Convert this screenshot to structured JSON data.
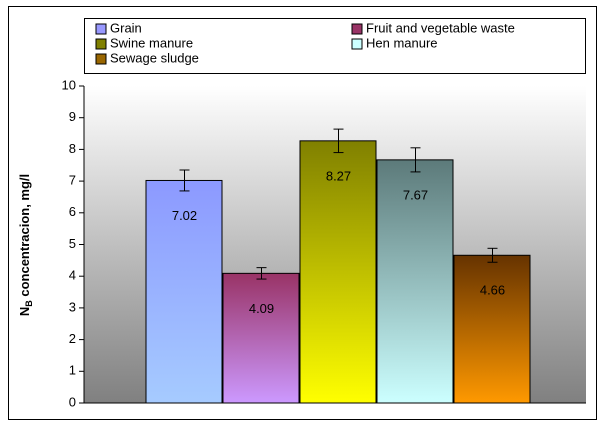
{
  "chart_data": {
    "type": "bar",
    "ylabel": {
      "main": "N",
      "sub": "B",
      "rest": " concentracion, mg/l"
    },
    "ylim": [
      0,
      10
    ],
    "yticks": [
      0,
      1,
      2,
      3,
      4,
      5,
      6,
      7,
      8,
      9,
      10
    ],
    "series": [
      {
        "name": "Grain",
        "color": "#9999ff",
        "gradient": [
          "#8c99ff",
          "#a6cbff"
        ],
        "values": [
          7.02
        ],
        "errors": [
          0.33
        ]
      },
      {
        "name": "Fruit and vegetable waste",
        "color": "#993366",
        "gradient": [
          "#993366",
          "#cc99ff"
        ],
        "values": [
          4.09
        ],
        "errors": [
          0.18
        ]
      },
      {
        "name": "Swine manure",
        "color": "#808000",
        "gradient": [
          "#808000",
          "#ffff00"
        ],
        "values": [
          8.27
        ],
        "errors": [
          0.37
        ]
      },
      {
        "name": "Hen manure",
        "color": "#ccffff",
        "gradient": [
          "#5c7a7a",
          "#ccffff"
        ],
        "values": [
          7.67
        ],
        "errors": [
          0.38
        ]
      },
      {
        "name": "Sewage sludge",
        "color": "#996600",
        "gradient": [
          "#663300",
          "#ff9900"
        ],
        "values": [
          4.66
        ],
        "errors": [
          0.22
        ]
      }
    ]
  }
}
